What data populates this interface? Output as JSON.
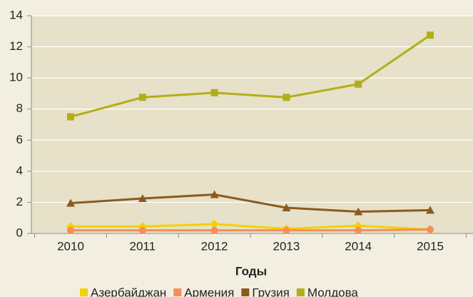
{
  "chart_data": {
    "type": "line",
    "x_label": "Годы",
    "categories": [
      "2010",
      "2011",
      "2012",
      "2013",
      "2014",
      "2015"
    ],
    "series": [
      {
        "name": "Азербайджан",
        "color": "#f5d000",
        "marker": "diamond",
        "values": [
          0.45,
          0.45,
          0.6,
          0.3,
          0.5,
          0.25
        ]
      },
      {
        "name": "Армения",
        "color": "#f58c5a",
        "marker": "circle",
        "values": [
          0.2,
          0.2,
          0.2,
          0.2,
          0.2,
          0.25
        ]
      },
      {
        "name": "Грузия",
        "color": "#8c5a1e",
        "marker": "triangle",
        "values": [
          1.95,
          2.25,
          2.5,
          1.65,
          1.4,
          1.5
        ]
      },
      {
        "name": "Молдова",
        "color": "#b3ae18",
        "marker": "square",
        "values": [
          7.5,
          8.75,
          9.05,
          8.75,
          9.6,
          12.75
        ]
      }
    ],
    "ylim": [
      0,
      14
    ],
    "yticks": [
      0,
      2,
      4,
      6,
      8,
      10,
      12,
      14
    ],
    "grid": true,
    "legend": "bottom"
  }
}
